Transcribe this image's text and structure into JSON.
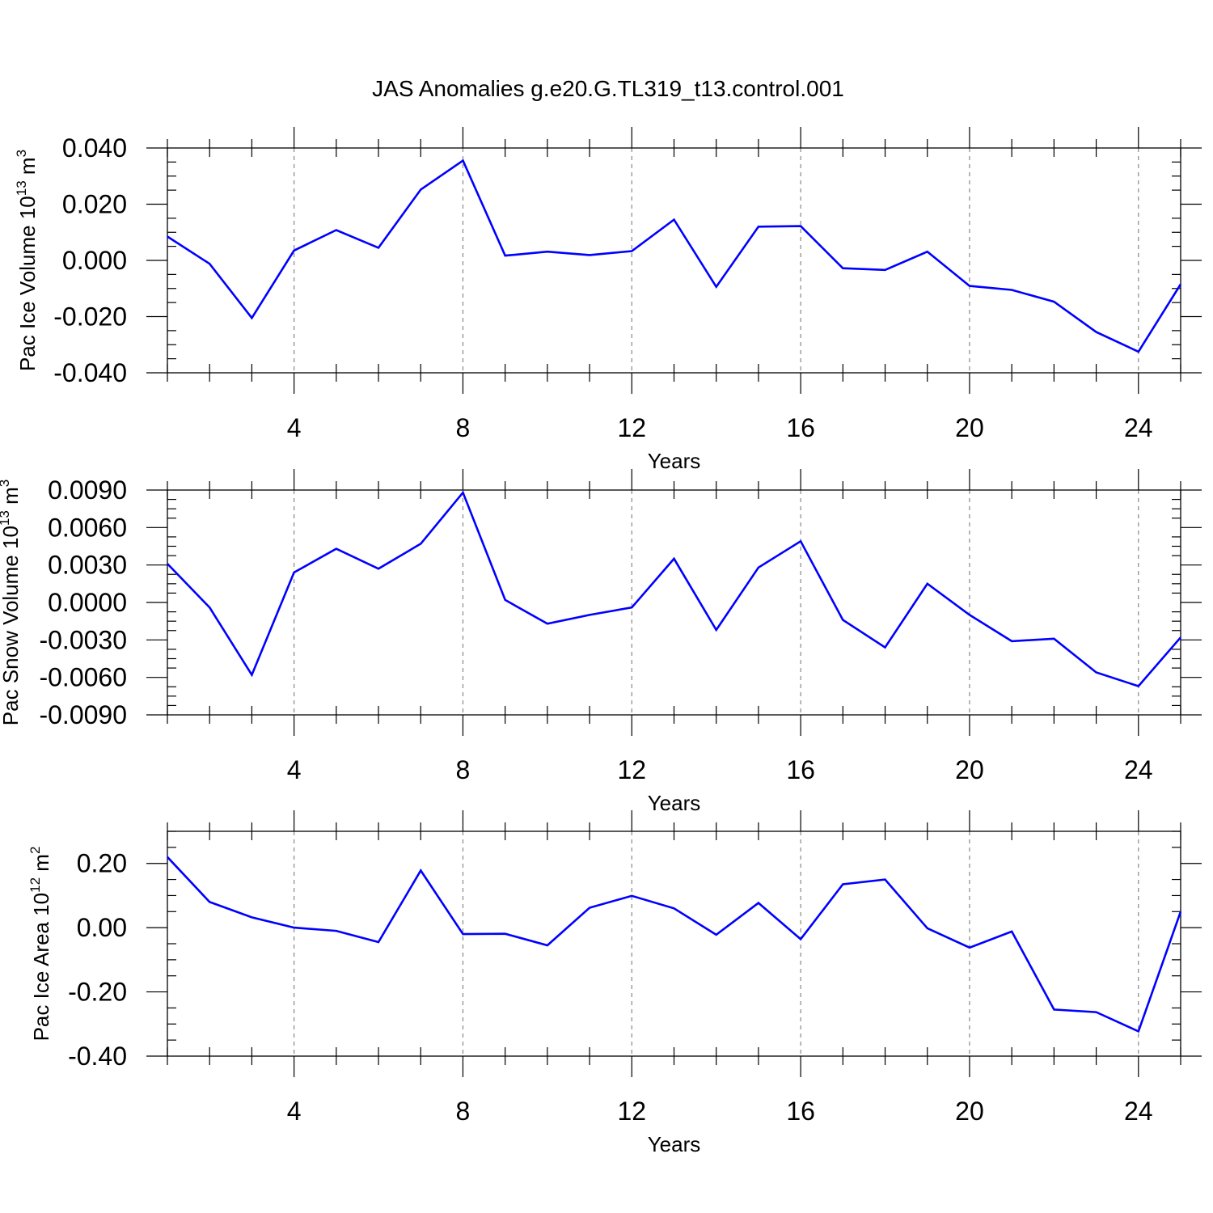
{
  "title": "JAS Anomalies g.e20.G.TL319_t13.control.001",
  "chart_data": [
    {
      "type": "line",
      "ylabel": "Pac Ice Volume 10",
      "ylabel_exp": "13",
      "ylabel_unit": " m",
      "ylabel_unit_exp": "3",
      "xlabel": "Years",
      "xlim": [
        1,
        25
      ],
      "ylim": [
        -0.04,
        0.04
      ],
      "yticks": [
        -0.04,
        -0.02,
        0.0,
        0.02,
        0.04
      ],
      "ytick_labels": [
        "-0.040",
        "-0.020",
        "0.000",
        "0.020",
        "0.040"
      ],
      "xticks": [
        4,
        8,
        12,
        16,
        20,
        24
      ],
      "xtick_labels": [
        "4",
        "8",
        "12",
        "16",
        "20",
        "24"
      ],
      "line_color": "#0000ff",
      "x": [
        1,
        2,
        3,
        4,
        5,
        6,
        7,
        8,
        9,
        10,
        11,
        12,
        13,
        14,
        15,
        16,
        17,
        18,
        19,
        20,
        21,
        22,
        23,
        24,
        25
      ],
      "values": [
        0.0085,
        -0.0012,
        -0.0205,
        0.0035,
        0.0108,
        0.0045,
        0.0252,
        0.0355,
        0.0017,
        0.0031,
        0.0019,
        0.0033,
        0.0145,
        -0.0094,
        0.012,
        0.0122,
        -0.0028,
        -0.0034,
        0.0031,
        -0.0091,
        -0.0105,
        -0.0147,
        -0.0255,
        -0.0325,
        -0.0085
      ]
    },
    {
      "type": "line",
      "ylabel": "Pac Snow Volume 10",
      "ylabel_exp": "13",
      "ylabel_unit": " m",
      "ylabel_unit_exp": "3",
      "xlabel": "Years",
      "xlim": [
        1,
        25
      ],
      "ylim": [
        -0.009,
        0.009
      ],
      "yticks": [
        -0.009,
        -0.006,
        -0.003,
        0.0,
        0.003,
        0.006,
        0.009
      ],
      "ytick_labels": [
        "-0.0090",
        "-0.0060",
        "-0.0030",
        "0.0000",
        "0.0030",
        "0.0060",
        "0.0090"
      ],
      "xticks": [
        4,
        8,
        12,
        16,
        20,
        24
      ],
      "xtick_labels": [
        "4",
        "8",
        "12",
        "16",
        "20",
        "24"
      ],
      "line_color": "#0000ff",
      "x": [
        1,
        2,
        3,
        4,
        5,
        6,
        7,
        8,
        9,
        10,
        11,
        12,
        13,
        14,
        15,
        16,
        17,
        18,
        19,
        20,
        21,
        22,
        23,
        24,
        25
      ],
      "values": [
        0.0031,
        -0.0004,
        -0.0058,
        0.0024,
        0.0043,
        0.0027,
        0.0047,
        0.0088,
        0.0002,
        -0.0017,
        -0.001,
        -0.0004,
        0.0035,
        -0.0022,
        0.0028,
        0.0049,
        -0.0014,
        -0.0036,
        0.0015,
        -0.001,
        -0.0031,
        -0.0029,
        -0.0056,
        -0.0067,
        -0.0028
      ]
    },
    {
      "type": "line",
      "ylabel": "Pac Ice Area 10",
      "ylabel_exp": "12",
      "ylabel_unit": " m",
      "ylabel_unit_exp": "2",
      "xlabel": "Years",
      "xlim": [
        1,
        25
      ],
      "ylim": [
        -0.4,
        0.3
      ],
      "yticks": [
        -0.4,
        -0.2,
        0.0,
        0.2
      ],
      "ytick_labels": [
        "-0.40",
        "-0.20",
        "0.00",
        "0.20"
      ],
      "xticks": [
        4,
        8,
        12,
        16,
        20,
        24
      ],
      "xtick_labels": [
        "4",
        "8",
        "12",
        "16",
        "20",
        "24"
      ],
      "line_color": "#0000ff",
      "x": [
        1,
        2,
        3,
        4,
        5,
        6,
        7,
        8,
        9,
        10,
        11,
        12,
        13,
        14,
        15,
        16,
        17,
        18,
        19,
        20,
        21,
        22,
        23,
        24,
        25
      ],
      "values": [
        0.22,
        0.08,
        0.032,
        0.0,
        -0.01,
        -0.045,
        0.178,
        -0.02,
        -0.019,
        -0.055,
        0.062,
        0.099,
        0.06,
        -0.022,
        0.077,
        -0.036,
        0.135,
        0.15,
        -0.002,
        -0.062,
        -0.012,
        -0.255,
        -0.263,
        -0.323,
        0.05
      ]
    }
  ]
}
